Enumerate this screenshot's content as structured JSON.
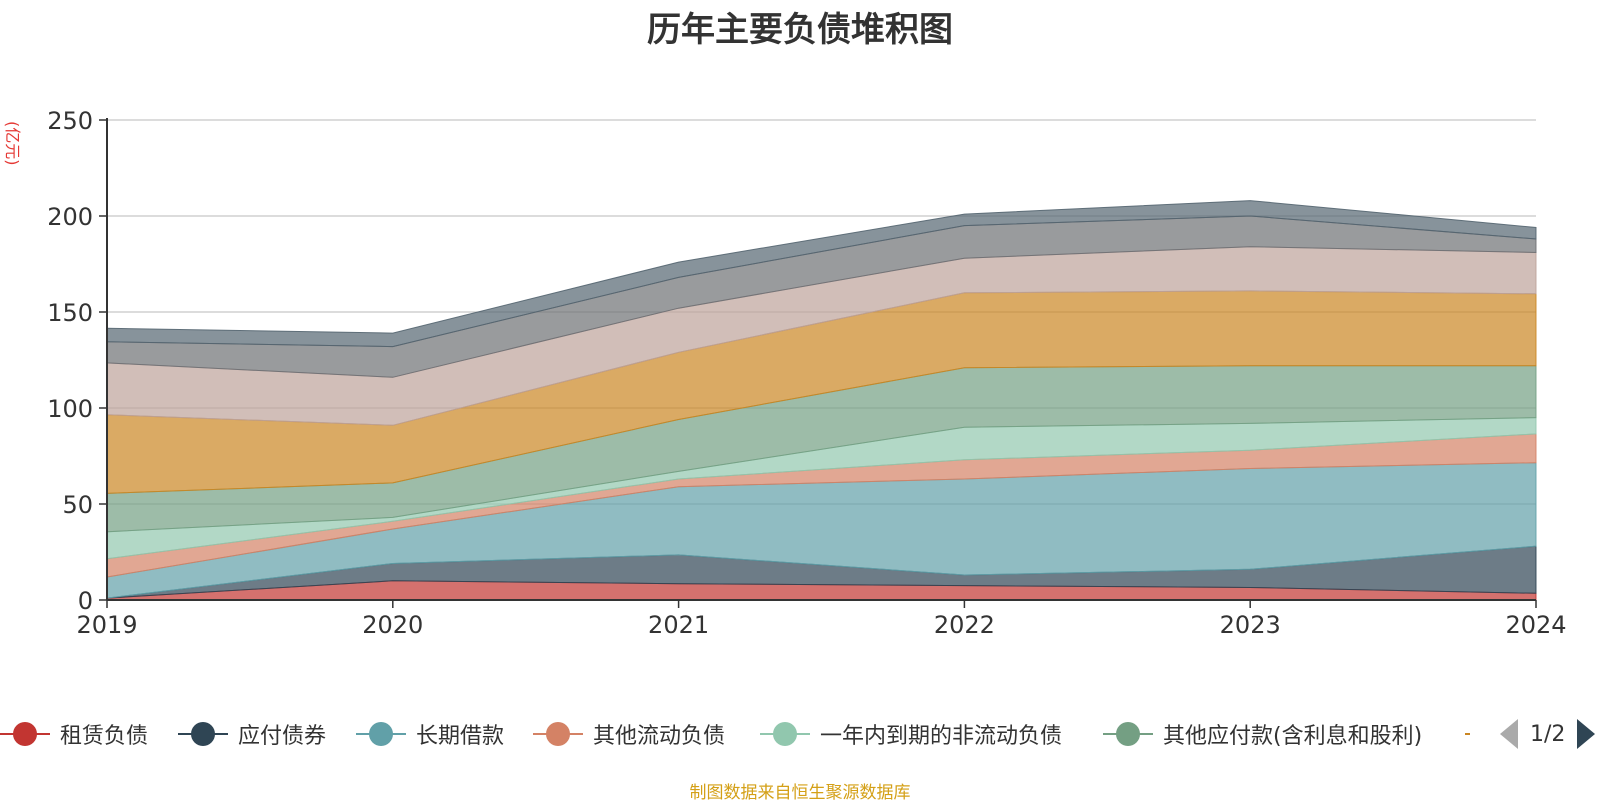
{
  "chart_data": {
    "type": "area",
    "stacked": true,
    "title": "历年主要负债堆积图",
    "ylabel": "(亿元)",
    "xlabel": "",
    "ylim": [
      0,
      250
    ],
    "yticks": [
      0,
      50,
      100,
      150,
      200,
      250
    ],
    "grid": true,
    "legend_position": "bottom",
    "categories": [
      "2019",
      "2020",
      "2021",
      "2022",
      "2023",
      "2024"
    ],
    "series": [
      {
        "name": "租赁负债",
        "color": "#c23531",
        "values": [
          1,
          10,
          8.5,
          7.5,
          6.5,
          3.5
        ]
      },
      {
        "name": "应付债券",
        "color": "#2f4554",
        "values": [
          0,
          9,
          15,
          5.5,
          9.5,
          24.5
        ]
      },
      {
        "name": "长期借款",
        "color": "#61a0a8",
        "values": [
          11,
          18,
          35.5,
          50,
          52.5,
          43.5
        ]
      },
      {
        "name": "其他流动负债",
        "color": "#d48265",
        "values": [
          9.5,
          4,
          4,
          10,
          9.5,
          15
        ]
      },
      {
        "name": "一年内到期的非流动负债",
        "color": "#91c7ae",
        "values": [
          14,
          2,
          4,
          17,
          14,
          8.5
        ]
      },
      {
        "name": "其他应付款(含利息和股利)",
        "color": "#749f83",
        "values": [
          20,
          18,
          27,
          31,
          30,
          27
        ]
      },
      {
        "name": "",
        "color": "#ca8622",
        "values": [
          41,
          30,
          35,
          39,
          39,
          37.5
        ]
      },
      {
        "name": "",
        "color": "#bda29a",
        "values": [
          27,
          25,
          23,
          18,
          23,
          21.5
        ]
      },
      {
        "name": "",
        "color": "#6e7074",
        "values": [
          11,
          16,
          16,
          17,
          16,
          7
        ]
      },
      {
        "name": "",
        "color": "#546570",
        "values": [
          7,
          7,
          8,
          6,
          8,
          6
        ]
      }
    ]
  },
  "legend": {
    "items": [
      {
        "label": "租赁负债",
        "color": "#c23531"
      },
      {
        "label": "应付债券",
        "color": "#2f4554"
      },
      {
        "label": "长期借款",
        "color": "#61a0a8"
      },
      {
        "label": "其他流动负债",
        "color": "#d48265"
      },
      {
        "label": "一年内到期的非流动负债",
        "color": "#91c7ae"
      },
      {
        "label": "其他应付款(含利息和股利)",
        "color": "#749f83"
      },
      {
        "label": "",
        "color": "#ca8622"
      }
    ],
    "page": "1/2"
  },
  "footer": "制图数据来自恒生聚源数据库"
}
